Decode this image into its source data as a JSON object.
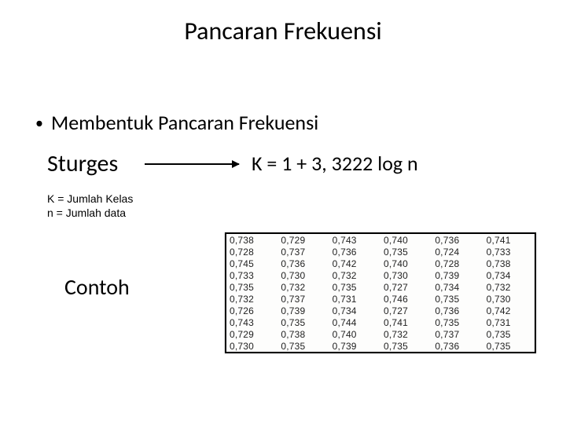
{
  "title": "Pancaran Frekuensi",
  "bullet": "Membentuk Pancaran Frekuensi",
  "sturges": "Sturges",
  "formula": "K = 1 + 3, 3222 log n",
  "legend_line1": "K = Jumlah Kelas",
  "legend_line2": "n = Jumlah data",
  "contoh": "Contoh",
  "data_table": {
    "type": "table",
    "columns_count": 6,
    "rows_count": 10,
    "font_family": "Arial",
    "font_size_px": 12,
    "text_color": "#222222",
    "background_color": "#fdfdfc",
    "border_color": "#000000",
    "border_width_px": 2,
    "rows": [
      [
        "0,738",
        "0,729",
        "0,743",
        "0,740",
        "0,736",
        "0,741"
      ],
      [
        "0,728",
        "0,737",
        "0,736",
        "0,735",
        "0,724",
        "0,733"
      ],
      [
        "0,745",
        "0,736",
        "0,742",
        "0,740",
        "0,728",
        "0,738"
      ],
      [
        "0,733",
        "0,730",
        "0,732",
        "0,730",
        "0,739",
        "0,734"
      ],
      [
        "0,735",
        "0,732",
        "0,735",
        "0,727",
        "0,734",
        "0,732"
      ],
      [
        "0,732",
        "0,737",
        "0,731",
        "0,746",
        "0,735",
        "0,730"
      ],
      [
        "0,726",
        "0,739",
        "0,734",
        "0,727",
        "0,736",
        "0,742"
      ],
      [
        "0,743",
        "0,735",
        "0,744",
        "0,741",
        "0,735",
        "0,731"
      ],
      [
        "0,729",
        "0,738",
        "0,740",
        "0,732",
        "0,737",
        "0,735"
      ],
      [
        "0,730",
        "0,735",
        "0,739",
        "0,735",
        "0,736",
        "0,735"
      ]
    ]
  },
  "colors": {
    "background": "#ffffff",
    "text": "#000000",
    "arrow": "#000000"
  }
}
